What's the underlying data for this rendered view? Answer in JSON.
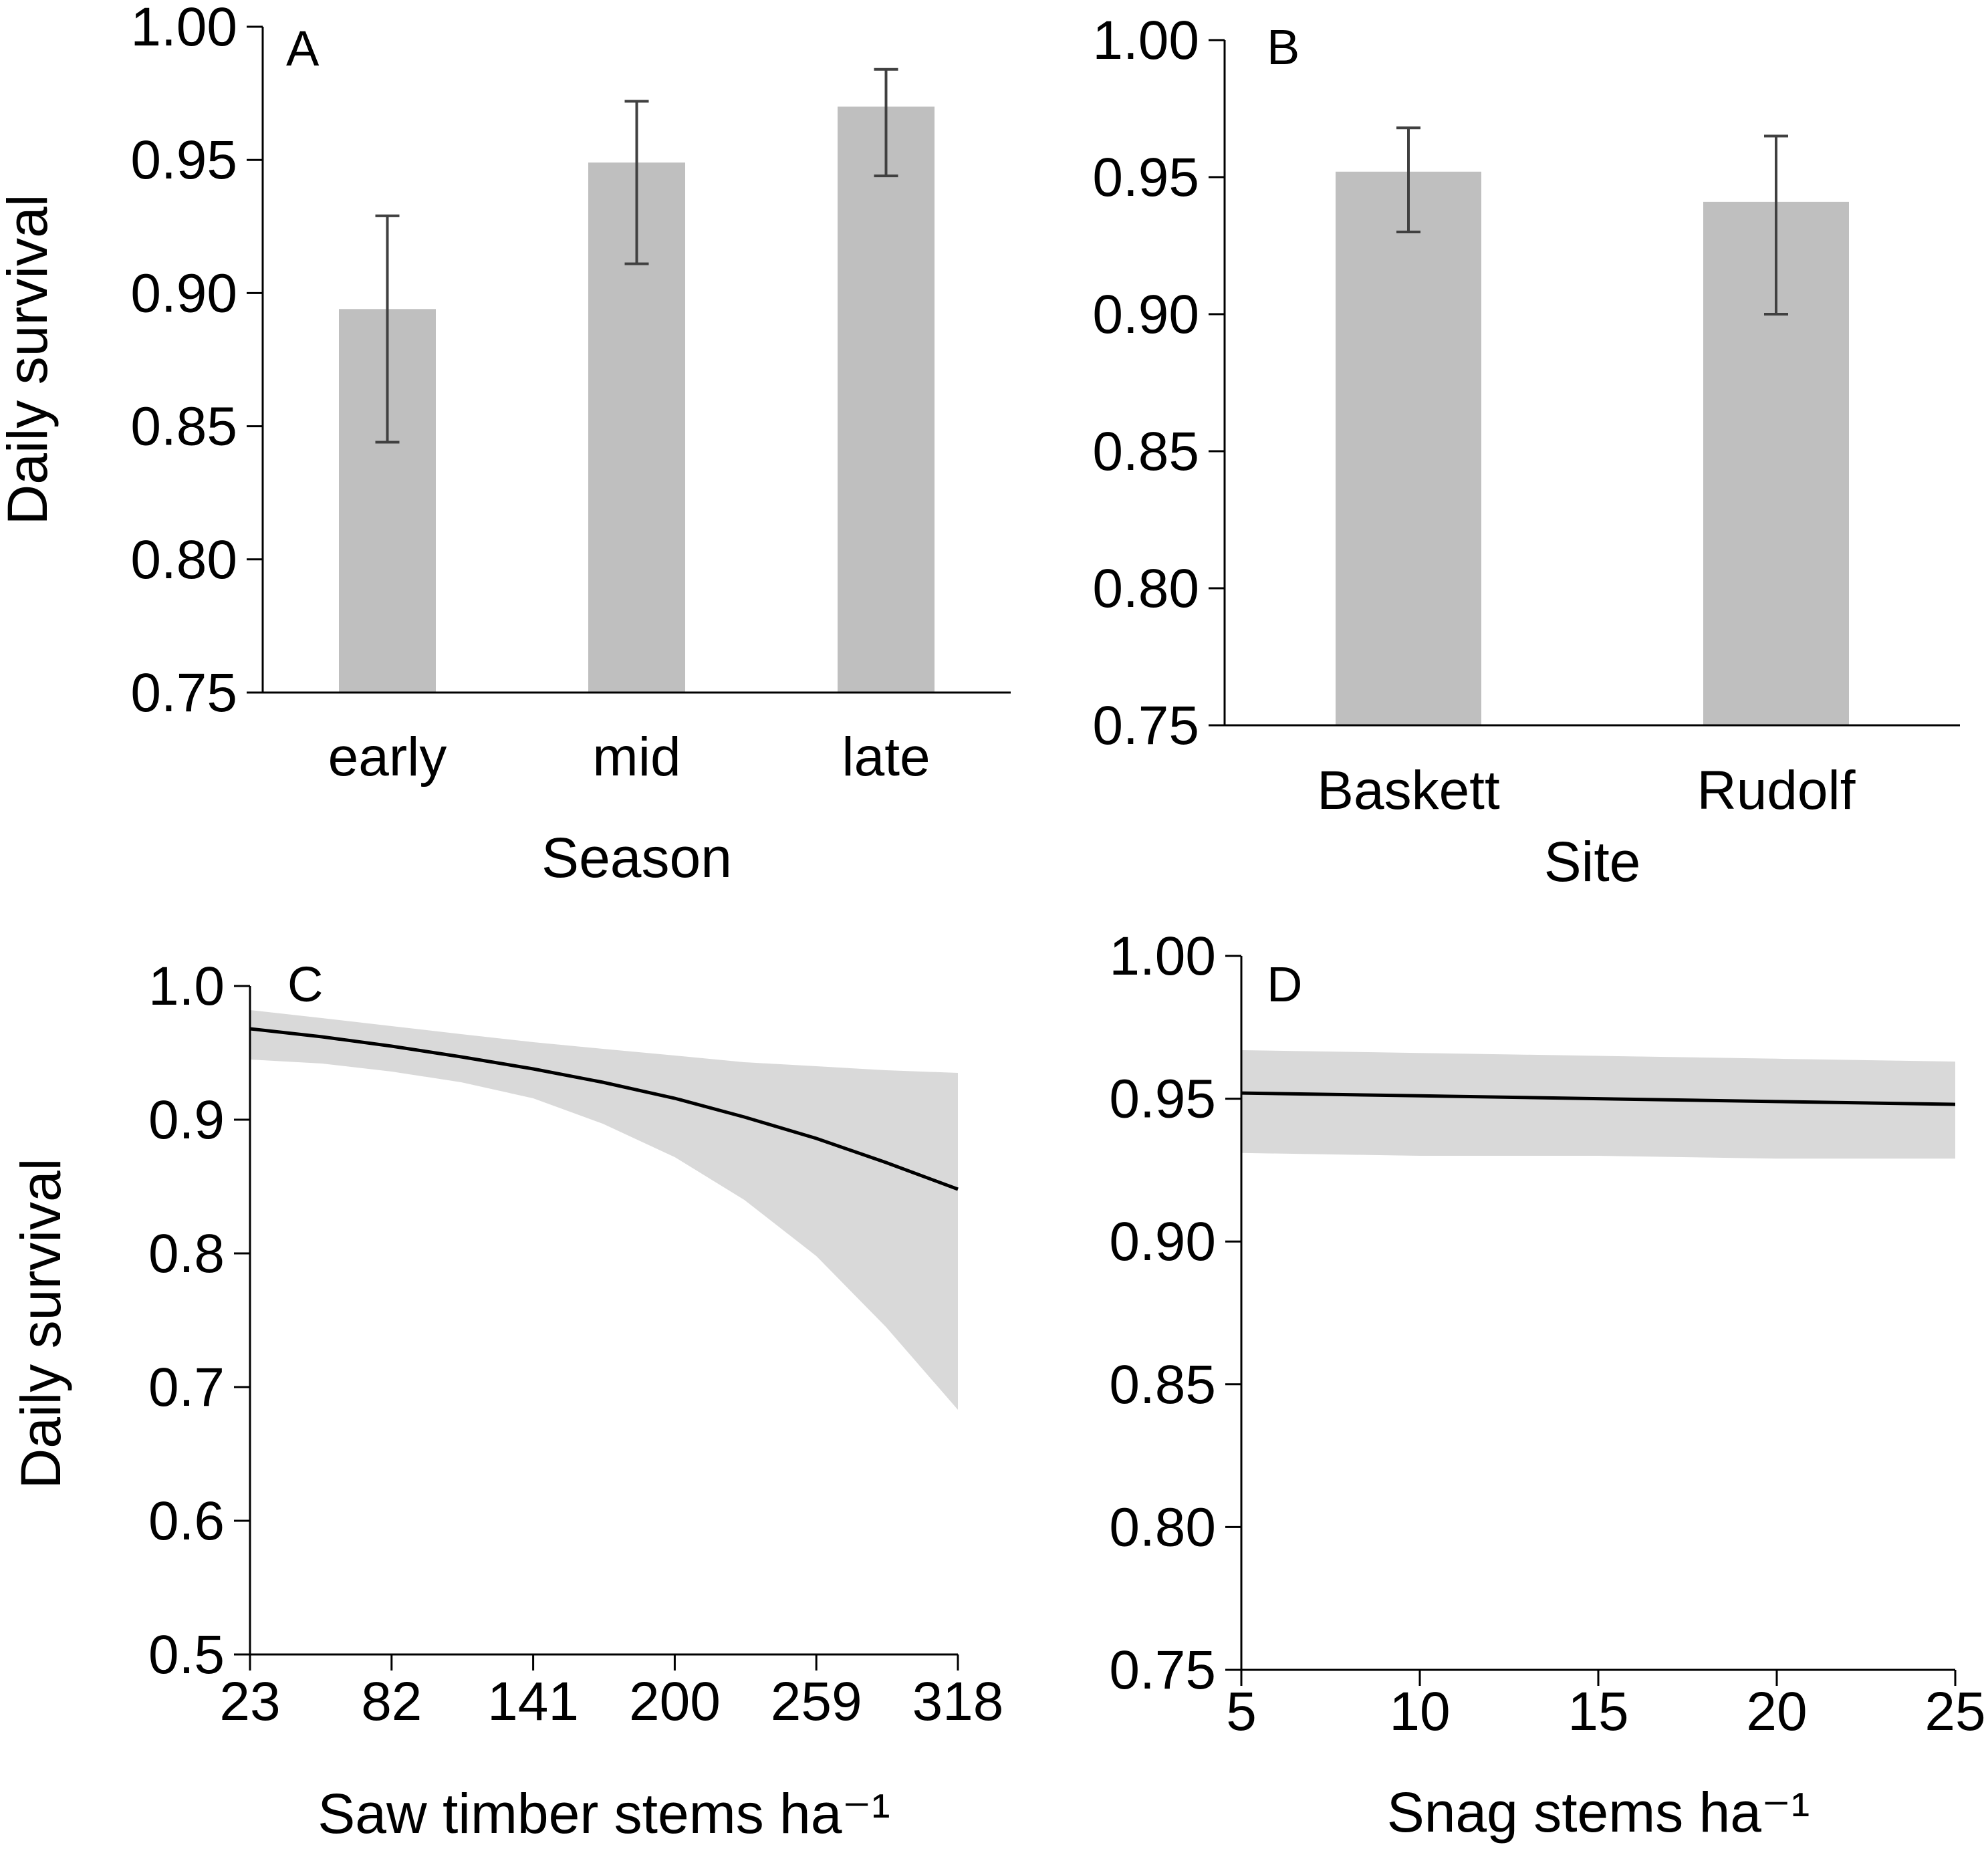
{
  "chart_data": [
    {
      "panel": "A",
      "type": "bar",
      "ylabel": "Daily survival",
      "xlabel": "Season",
      "categories": [
        "early",
        "mid",
        "late"
      ],
      "values": [
        0.894,
        0.949,
        0.97
      ],
      "error_low": [
        0.844,
        0.911,
        0.944
      ],
      "error_high": [
        0.929,
        0.972,
        0.984
      ],
      "ylim": [
        0.75,
        1.0
      ],
      "yticks": [
        "0.75",
        "0.80",
        "0.85",
        "0.90",
        "0.95",
        "1.00"
      ],
      "bar_color": "#bfbfbf",
      "error_color": "#404040",
      "grid": false
    },
    {
      "panel": "B",
      "type": "bar",
      "ylabel": "",
      "xlabel": "Site",
      "categories": [
        "Baskett",
        "Rudolf"
      ],
      "values": [
        0.952,
        0.941
      ],
      "error_low": [
        0.93,
        0.9
      ],
      "error_high": [
        0.968,
        0.965
      ],
      "ylim": [
        0.75,
        1.0
      ],
      "yticks": [
        "0.75",
        "0.80",
        "0.85",
        "0.90",
        "0.95",
        "1.00"
      ],
      "bar_color": "#bfbfbf",
      "error_color": "#404040",
      "grid": false
    },
    {
      "panel": "C",
      "type": "line",
      "ylabel": "Daily survival",
      "xlabel": "Saw timber stems ha⁻¹",
      "x": [
        23,
        53,
        82,
        111,
        141,
        170,
        200,
        229,
        259,
        288,
        318
      ],
      "y": [
        0.968,
        0.962,
        0.955,
        0.947,
        0.938,
        0.928,
        0.916,
        0.902,
        0.886,
        0.868,
        0.848
      ],
      "ci_low": [
        0.945,
        0.942,
        0.936,
        0.928,
        0.916,
        0.897,
        0.872,
        0.84,
        0.798,
        0.745,
        0.683
      ],
      "ci_high": [
        0.982,
        0.976,
        0.97,
        0.964,
        0.958,
        0.953,
        0.948,
        0.943,
        0.94,
        0.937,
        0.935
      ],
      "xlim": [
        23,
        318
      ],
      "ylim": [
        0.5,
        1.0
      ],
      "xticks": [
        "23",
        "82",
        "141",
        "200",
        "259",
        "318"
      ],
      "yticks": [
        "0.5",
        "0.6",
        "0.7",
        "0.8",
        "0.9",
        "1.0"
      ],
      "line_color": "#000000",
      "band_color": "#d9d9d9",
      "grid": false
    },
    {
      "panel": "D",
      "type": "line",
      "ylabel": "",
      "xlabel": "Snag stems ha⁻¹",
      "x": [
        5,
        10,
        15,
        20,
        25
      ],
      "y": [
        0.952,
        0.951,
        0.95,
        0.949,
        0.948
      ],
      "ci_low": [
        0.931,
        0.93,
        0.93,
        0.929,
        0.929
      ],
      "ci_high": [
        0.967,
        0.966,
        0.965,
        0.964,
        0.963
      ],
      "xlim": [
        5,
        25
      ],
      "ylim": [
        0.75,
        1.0
      ],
      "xticks": [
        "5",
        "10",
        "15",
        "20",
        "25"
      ],
      "yticks": [
        "0.75",
        "0.80",
        "0.85",
        "0.90",
        "0.95",
        "1.00"
      ],
      "line_color": "#000000",
      "band_color": "#d9d9d9",
      "grid": false
    }
  ]
}
